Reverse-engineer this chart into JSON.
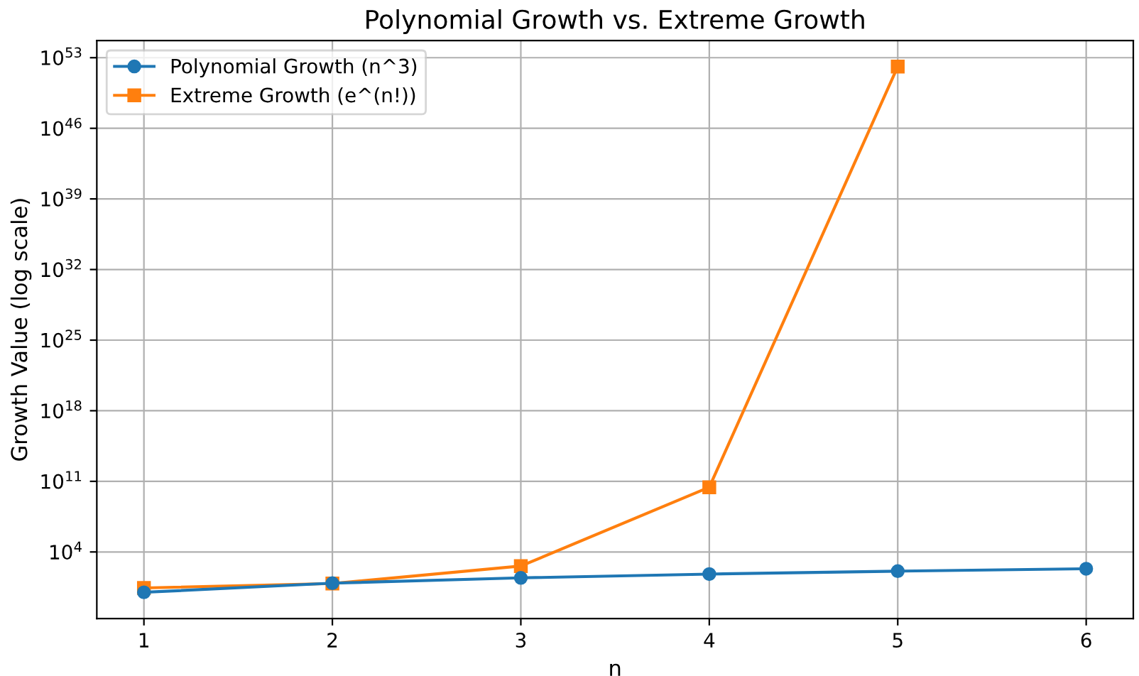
{
  "chart_data": {
    "type": "line",
    "title": "Polynomial Growth vs. Extreme Growth",
    "xlabel": "n",
    "ylabel": "Growth Value (log scale)",
    "x": [
      1,
      2,
      3,
      4,
      5,
      6
    ],
    "series": [
      {
        "name": "Polynomial Growth (n^3)",
        "color": "#1f77b4",
        "marker": "circle",
        "values": [
          1,
          8,
          27,
          64,
          125,
          216
        ]
      },
      {
        "name": "Extreme Growth (e^(n!))",
        "color": "#ff7f0e",
        "marker": "square",
        "values": [
          2.7,
          7.4,
          400,
          26000000000.0,
          1.3e+52,
          null
        ]
      }
    ],
    "log": "y",
    "xlim": [
      0.75,
      6.25
    ],
    "ylim": [
      0.0025,
      5e+54
    ],
    "xticks": [
      1,
      2,
      3,
      4,
      5,
      6
    ],
    "yticks": [
      {
        "value": 10000.0,
        "label": "10$^{4}$"
      },
      {
        "value": 100000000000.0,
        "label": "10$^{11}$"
      },
      {
        "value": 1e+18,
        "label": "10$^{18}$"
      },
      {
        "value": 1e+25,
        "label": "10$^{25}$"
      },
      {
        "value": 1e+32,
        "label": "10$^{32}$"
      },
      {
        "value": 1e+39,
        "label": "10$^{39}$"
      },
      {
        "value": 1e+46,
        "label": "10$^{46}$"
      },
      {
        "value": 1e+53,
        "label": "10$^{53}$"
      }
    ],
    "grid": true,
    "legend": "top left",
    "line_style": "solid"
  }
}
